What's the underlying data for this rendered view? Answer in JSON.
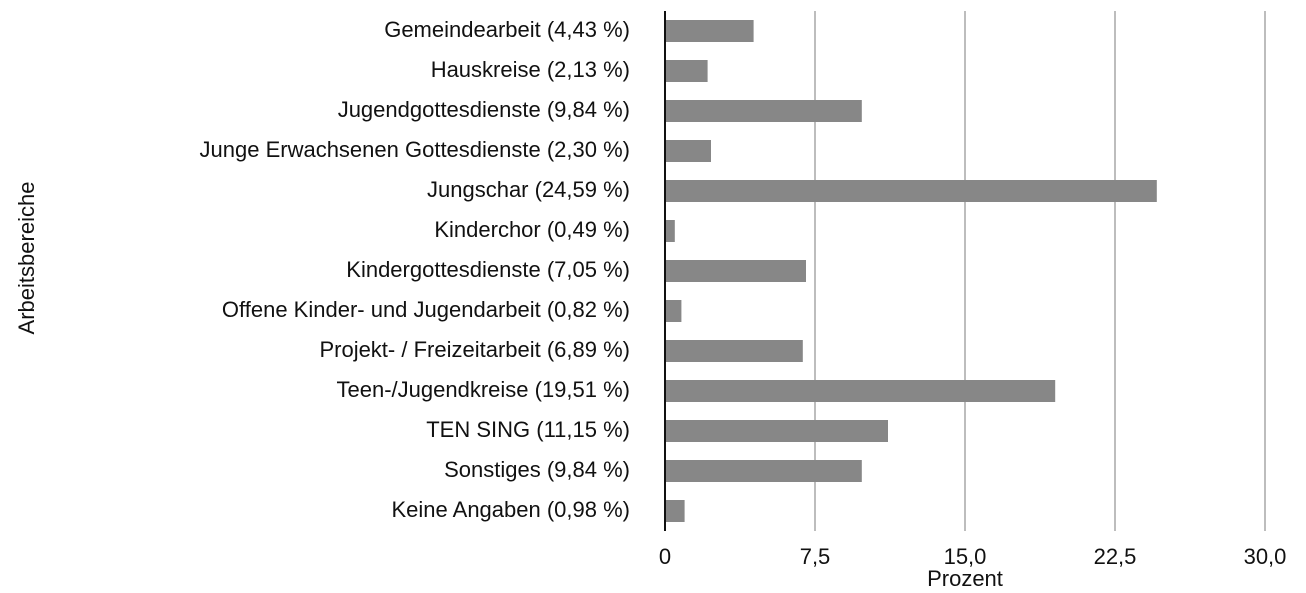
{
  "chart_data": {
    "type": "barh",
    "categories": [
      "Gemeindearbeit (4,43 %)",
      "Hauskreise (2,13 %)",
      "Jugendgottesdienste (9,84 %)",
      "Junge Erwachsenen Gottesdienste (2,30 %)",
      "Jungschar (24,59 %)",
      "Kinderchor (0,49 %)",
      "Kindergottesdienste (7,05 %)",
      "Offene Kinder- und Jugendarbeit (0,82 %)",
      "Projekt- / Freizeitarbeit (6,89 %)",
      "Teen-/Jugendkreise (19,51 %)",
      "TEN SING (11,15 %)",
      "Sonstiges (9,84 %)",
      "Keine Angaben (0,98 %)"
    ],
    "values": [
      4.43,
      2.13,
      9.84,
      2.3,
      24.59,
      0.49,
      7.05,
      0.82,
      6.89,
      19.51,
      11.15,
      9.84,
      0.98
    ],
    "color": "#878787",
    "xlabel": "Prozent",
    "ylabel": "Arbeitsbereiche",
    "xlim": [
      0,
      30
    ],
    "xticks": [
      0,
      {
        "value": 7.5,
        "label": "7,5"
      },
      {
        "value": 15,
        "label": "15,0"
      },
      {
        "value": 22.5,
        "label": "22,5"
      },
      {
        "value": 30,
        "label": "30,0"
      }
    ],
    "grid": true
  }
}
